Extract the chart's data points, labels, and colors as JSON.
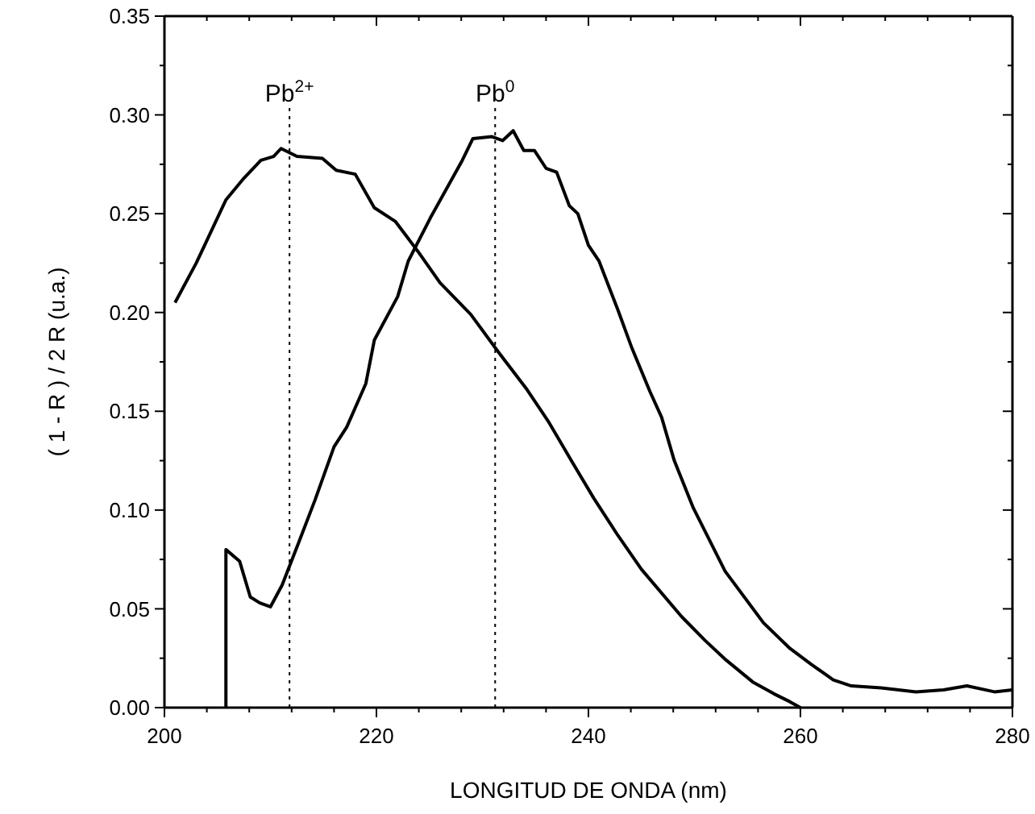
{
  "chart_data": {
    "type": "line",
    "xlabel": "LONGITUD DE ONDA (nm)",
    "ylabel": "( 1 - R ) / 2 R (u.a.)",
    "xlim": [
      200,
      280
    ],
    "ylim": [
      0,
      0.35
    ],
    "xticks": [
      200,
      {
        "value": 204,
        "label": null
      },
      {
        "value": 208,
        "label": null
      },
      {
        "value": 212,
        "label": null
      },
      {
        "value": 216,
        "label": null
      },
      220,
      {
        "value": 224,
        "label": null
      },
      {
        "value": 228,
        "label": null
      },
      {
        "value": 232,
        "label": null
      },
      {
        "value": 236,
        "label": null
      },
      240,
      {
        "value": 244,
        "label": null
      },
      {
        "value": 248,
        "label": null
      },
      {
        "value": 252,
        "label": null
      },
      {
        "value": 256,
        "label": null
      },
      260,
      {
        "value": 264,
        "label": null
      },
      {
        "value": 268,
        "label": null
      },
      {
        "value": 272,
        "label": null
      },
      {
        "value": 276,
        "label": null
      },
      280
    ],
    "yticks": [
      {
        "value": 0,
        "label": "0.00"
      },
      {
        "value": 0.025,
        "label": null
      },
      {
        "value": 0.05,
        "label": "0.05"
      },
      {
        "value": 0.075,
        "label": null
      },
      {
        "value": 0.1,
        "label": "0.10"
      },
      {
        "value": 0.125,
        "label": null
      },
      {
        "value": 0.15,
        "label": "0.15"
      },
      {
        "value": 0.175,
        "label": null
      },
      {
        "value": 0.2,
        "label": "0.20"
      },
      {
        "value": 0.225,
        "label": null
      },
      {
        "value": 0.25,
        "label": "0.25"
      },
      {
        "value": 0.275,
        "label": null
      },
      {
        "value": 0.3,
        "label": "0.30"
      },
      {
        "value": 0.325,
        "label": null
      },
      {
        "value": 0.35,
        "label": "0.35"
      }
    ],
    "grid": false,
    "marker": "none",
    "line_style": "solid",
    "ref_lines": [
      {
        "axis": "x",
        "value": 211.8,
        "label": "Pb$^{2+}$",
        "line_style": "dotted"
      },
      {
        "axis": "x",
        "value": 231.2,
        "label": "Pb$^{0}$",
        "line_style": "dotted"
      }
    ],
    "series": [
      {
        "color": "#000000",
        "x": [
          201,
          203,
          205.8,
          207.5,
          209.1,
          210.3,
          211,
          212.5,
          214.9,
          216.2,
          218,
          219.8,
          221.8,
          223.9,
          226,
          228.9,
          231.5,
          234.2,
          236.2,
          238.5,
          240.5,
          242.8,
          245,
          248.8,
          251,
          253,
          255.5,
          257.5,
          259,
          260
        ],
        "values": [
          0.205,
          0.225,
          0.257,
          0.268,
          0.277,
          0.279,
          0.283,
          0.279,
          0.278,
          0.272,
          0.27,
          0.253,
          0.246,
          0.231,
          0.215,
          0.199,
          0.18,
          0.161,
          0.145,
          0.124,
          0.106,
          0.087,
          0.07,
          0.046,
          0.034,
          0.024,
          0.013,
          0.007,
          0.003,
          0
        ]
      },
      {
        "color": "#000000",
        "x": [
          205.8,
          205.8,
          207.1,
          208.1,
          209,
          210,
          211.1,
          212.7,
          214.2,
          216,
          217.2,
          219,
          219.8,
          222,
          223,
          225.1,
          228.1,
          229.1,
          230.9,
          231.9,
          232.9,
          233.9,
          234.9,
          236,
          237,
          238.2,
          239,
          240,
          241,
          242.8,
          244.1,
          245.8,
          246.9,
          248.1,
          249.9,
          252.9,
          256.5,
          259,
          261,
          263.1,
          264.8,
          267.6,
          270.9,
          273.5,
          275.7,
          278.3,
          280
        ],
        "values": [
          0,
          0.08,
          0.074,
          0.056,
          0.053,
          0.051,
          0.062,
          0.084,
          0.105,
          0.132,
          0.142,
          0.164,
          0.186,
          0.208,
          0.226,
          0.248,
          0.277,
          0.288,
          0.289,
          0.287,
          0.292,
          0.282,
          0.282,
          0.273,
          0.271,
          0.254,
          0.25,
          0.234,
          0.226,
          0.201,
          0.182,
          0.16,
          0.147,
          0.125,
          0.101,
          0.069,
          0.043,
          0.03,
          0.022,
          0.014,
          0.011,
          0.01,
          0.008,
          0.009,
          0.011,
          0.008,
          0.009
        ]
      }
    ]
  }
}
